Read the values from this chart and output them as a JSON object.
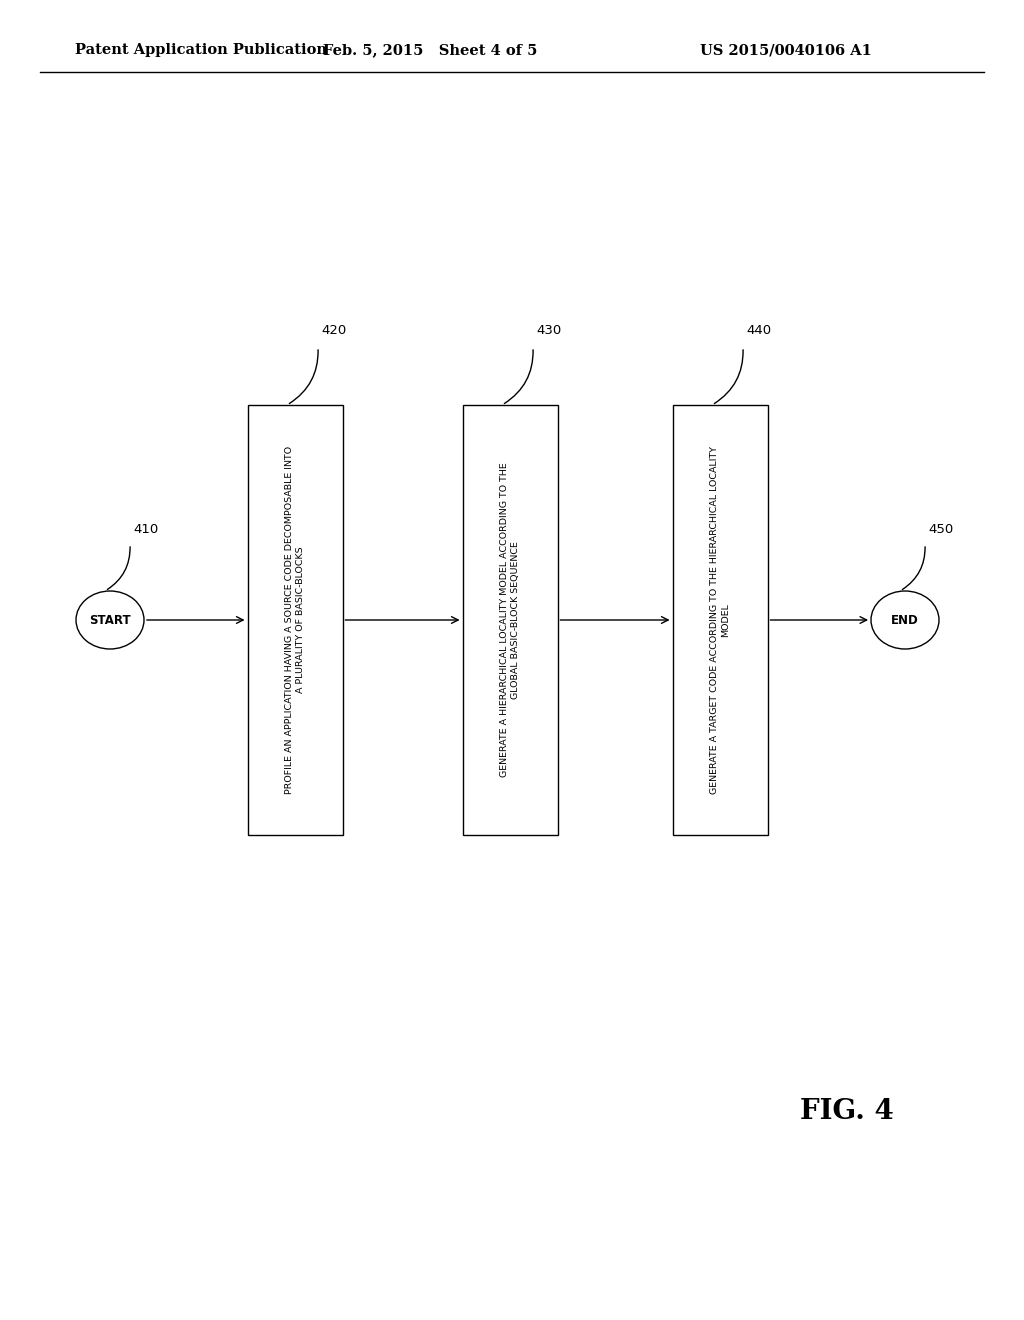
{
  "title_left": "Patent Application Publication",
  "title_center": "Feb. 5, 2015   Sheet 4 of 5",
  "title_right": "US 2015/0040106 A1",
  "header_fontsize": 10.5,
  "fig_label": "FIG. 4",
  "background_color": "#ffffff",
  "box1_label": "PROFILE AN APPLICATION HAVING A SOURCE CODE DECOMPOSABLE INTO\nA PLURALITY OF BASIC-BLOCKS",
  "box2_label": "GENERATE A HIERARCHICAL LOCALITY MODEL ACCORDING TO THE\nGLOBAL BASIC-BLOCK SEQUENCE",
  "box3_label": "GENERATE A TARGET CODE ACCORDING TO THE HIERARCHICAL LOCALITY\nMODEL",
  "start_label": "START",
  "end_label": "END",
  "ref_410": "410",
  "ref_420": "420",
  "ref_430": "430",
  "ref_440": "440",
  "ref_450": "450",
  "line_color": "#000000",
  "line_width": 1.0,
  "text_fontsize": 6.8,
  "ref_fontsize": 9.5,
  "oval_fontsize": 8.5
}
